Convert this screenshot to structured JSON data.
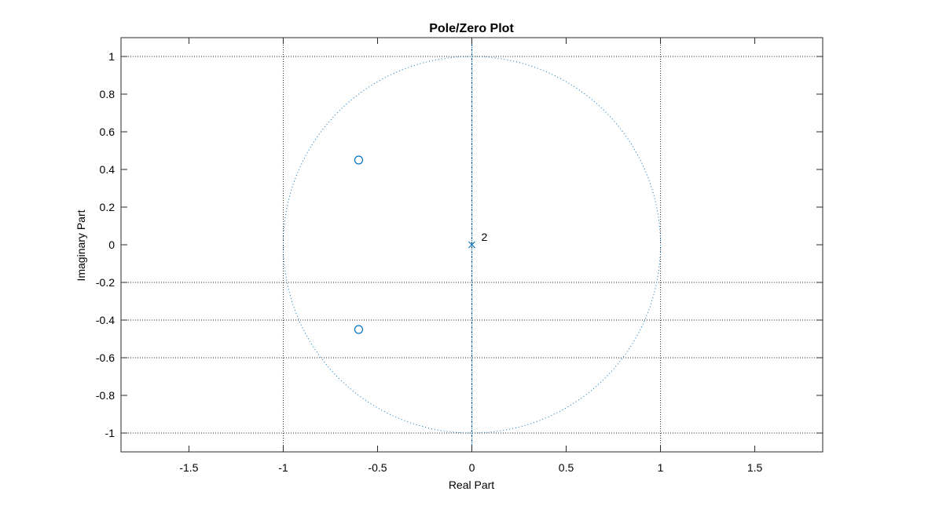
{
  "chart_data": {
    "type": "scatter",
    "title": "Pole/Zero Plot",
    "xlabel": "Real Part",
    "ylabel": "Imaginary Part",
    "xlim": [
      -1.86,
      1.86
    ],
    "ylim": [
      -1.1,
      1.1
    ],
    "xticks": [
      -1.5,
      -1,
      -0.5,
      0,
      0.5,
      1,
      1.5
    ],
    "yticks": [
      -1,
      -0.8,
      -0.6,
      -0.4,
      -0.2,
      0,
      0.2,
      0.4,
      0.6,
      0.8,
      1
    ],
    "xtick_labels": [
      "-1.5",
      "-1",
      "-0.5",
      "0",
      "0.5",
      "1",
      "1.5"
    ],
    "ytick_labels": [
      "-1",
      "-0.8",
      "-0.6",
      "-0.4",
      "-0.2",
      "0",
      "0.2",
      "0.4",
      "0.6",
      "0.8",
      "1"
    ],
    "unit_circle": {
      "center": [
        0,
        0
      ],
      "radius": 1
    },
    "series": [
      {
        "name": "zeros",
        "marker": "o",
        "points": [
          [
            -0.6,
            0.45
          ],
          [
            -0.6,
            -0.45
          ]
        ]
      },
      {
        "name": "poles",
        "marker": "x",
        "points": [
          [
            0,
            0
          ]
        ],
        "multiplicity_label": "2"
      }
    ],
    "grid_x": [
      -1,
      0,
      1
    ],
    "grid_y": [
      -1,
      -0.6,
      -0.4,
      -0.2,
      1
    ],
    "vertical_axis_line": 0,
    "colors": {
      "marker": "#0072bd",
      "grid": "#262626",
      "axes": "#262626",
      "circle": "#0072bd"
    }
  }
}
